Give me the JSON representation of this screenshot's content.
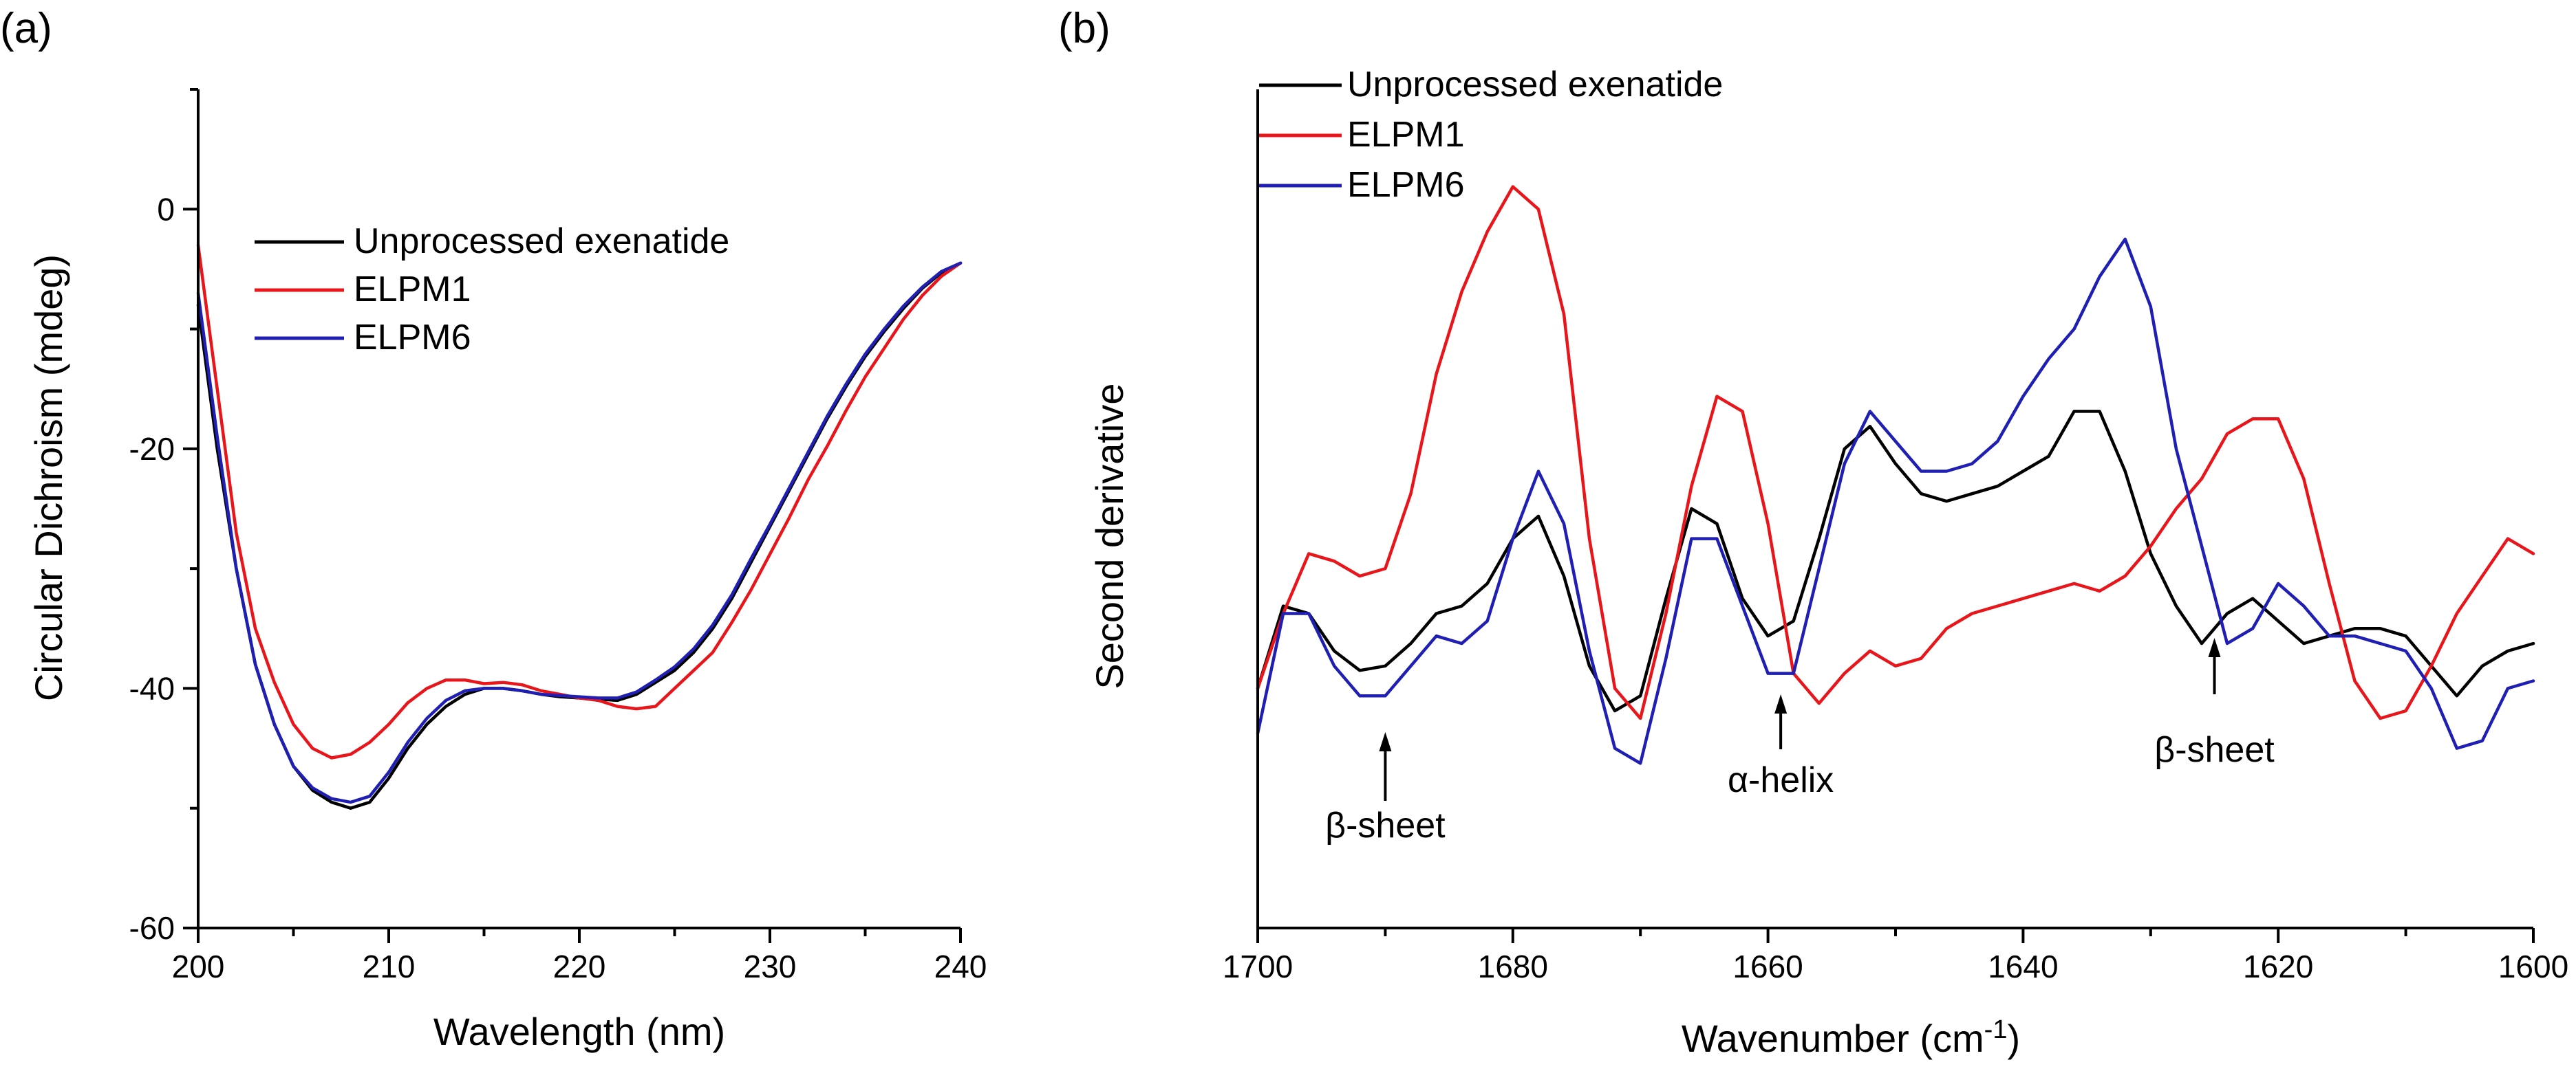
{
  "figure": {
    "panels": [
      "(a)",
      "(b)"
    ]
  },
  "colors": {
    "Unprocessed exenatide": "#000000",
    "ELPM1": "#e8161b",
    "ELPM6": "#1f1fb4"
  },
  "chart_data": [
    {
      "type": "line",
      "panel": "(a)",
      "title": "",
      "xlabel": "Wavelength (nm)",
      "ylabel": "Circular Dichroism (mdeg)",
      "xlim": [
        200,
        240
      ],
      "ylim": [
        -60,
        10
      ],
      "xticks": [
        200,
        210,
        220,
        230,
        240
      ],
      "xtick_labels": [
        "200",
        "210",
        "220",
        "230",
        "240"
      ],
      "yticks": [
        -60,
        -40,
        -20,
        0
      ],
      "ytick_labels": [
        "-60",
        "-40",
        "-20",
        "0"
      ],
      "grid": false,
      "legend": {
        "position": "top-left",
        "entries": [
          "Unprocessed exenatide",
          "ELPM1",
          "ELPM6"
        ]
      },
      "x": [
        200,
        201,
        202,
        203,
        204,
        205,
        206,
        207,
        208,
        209,
        210,
        211,
        212,
        213,
        214,
        215,
        216,
        217,
        218,
        219,
        220,
        221,
        222,
        223,
        224,
        225,
        226,
        227,
        228,
        229,
        230,
        231,
        232,
        233,
        234,
        235,
        236,
        237,
        238,
        239,
        240
      ],
      "series": [
        {
          "name": "Unprocessed exenatide",
          "values": [
            -8,
            -20,
            -30,
            -38,
            -43,
            -46.5,
            -48.5,
            -49.5,
            -50,
            -49.5,
            -47.5,
            -45,
            -43,
            -41.5,
            -40.5,
            -40,
            -40,
            -40.2,
            -40.5,
            -40.7,
            -40.8,
            -40.9,
            -41,
            -40.5,
            -39.5,
            -38.5,
            -37,
            -35,
            -32.5,
            -29.5,
            -26.5,
            -23.5,
            -20.5,
            -17.5,
            -14.8,
            -12.3,
            -10.2,
            -8.3,
            -6.6,
            -5.3,
            -4.5
          ]
        },
        {
          "name": "ELPM1",
          "values": [
            -3,
            -15,
            -27,
            -35,
            -39.5,
            -43,
            -45,
            -45.8,
            -45.5,
            -44.5,
            -43,
            -41.2,
            -40,
            -39.3,
            -39.3,
            -39.6,
            -39.5,
            -39.7,
            -40.2,
            -40.5,
            -40.8,
            -41,
            -41.5,
            -41.7,
            -41.5,
            -40,
            -38.5,
            -37,
            -34.5,
            -31.8,
            -28.8,
            -25.8,
            -22.6,
            -19.8,
            -16.8,
            -14,
            -11.6,
            -9.2,
            -7.2,
            -5.6,
            -4.5
          ]
        },
        {
          "name": "ELPM6",
          "values": [
            -7,
            -19,
            -30,
            -38,
            -43,
            -46.5,
            -48.3,
            -49.2,
            -49.5,
            -49,
            -47,
            -44.5,
            -42.5,
            -41,
            -40.2,
            -40,
            -40,
            -40.2,
            -40.5,
            -40.6,
            -40.7,
            -40.8,
            -40.8,
            -40.3,
            -39.3,
            -38.2,
            -36.7,
            -34.7,
            -32.2,
            -29.2,
            -26.3,
            -23.3,
            -20.3,
            -17.3,
            -14.6,
            -12.1,
            -10,
            -8.1,
            -6.5,
            -5.2,
            -4.5
          ]
        }
      ]
    },
    {
      "type": "line",
      "panel": "(b)",
      "title": "",
      "xlabel": "Wavenumber (cm",
      "xlabel_superscript": "-1",
      "xlabel_suffix": ")",
      "ylabel": "Second derivative",
      "xlim": [
        1700,
        1600
      ],
      "x_reversed": true,
      "xticks": [
        1700,
        1680,
        1660,
        1640,
        1620,
        1600
      ],
      "xtick_labels": [
        "1700",
        "1680",
        "1660",
        "1640",
        "1620",
        "1600"
      ],
      "yticks": [],
      "ylim": [
        -56,
        0
      ],
      "grid": false,
      "legend": {
        "position": "top-left",
        "entries": [
          "Unprocessed exenatide",
          "ELPM1",
          "ELPM6"
        ]
      },
      "annotations": [
        {
          "text": "β-sheet",
          "x": 1690
        },
        {
          "text": "α-helix",
          "x": 1659
        },
        {
          "text": "β-sheet",
          "x": 1625
        }
      ],
      "x": [
        1700,
        1698,
        1696,
        1694,
        1692,
        1690,
        1688,
        1686,
        1684,
        1682,
        1680,
        1678,
        1676,
        1674,
        1672,
        1670,
        1668,
        1666,
        1664,
        1662,
        1660,
        1658,
        1656,
        1654,
        1652,
        1650,
        1648,
        1646,
        1644,
        1642,
        1640,
        1638,
        1636,
        1634,
        1632,
        1630,
        1628,
        1626,
        1624,
        1622,
        1620,
        1618,
        1616,
        1614,
        1612,
        1610,
        1608,
        1606,
        1604,
        1602,
        1600
      ],
      "series": [
        {
          "name": "Unprocessed exenatide",
          "values": [
            -40,
            -34.5,
            -35,
            -37.5,
            -38.8,
            -38.5,
            -37,
            -35,
            -34.5,
            -33,
            -30,
            -28.5,
            -32.5,
            -38.5,
            -41.5,
            -40.5,
            -34,
            -28,
            -29,
            -34,
            -36.5,
            -35.5,
            -30,
            -24,
            -22.5,
            -25,
            -27,
            -27.5,
            -27,
            -26.5,
            -25.5,
            -24.5,
            -21.5,
            -21.5,
            -25.5,
            -31,
            -34.5,
            -37,
            -35,
            -34,
            -35.5,
            -37,
            -36.5,
            -36,
            -36,
            -36.5,
            -38.5,
            -40.5,
            -38.5,
            -37.5,
            -37
          ]
        },
        {
          "name": "ELPM1",
          "values": [
            -40,
            -35,
            -31,
            -31.5,
            -32.5,
            -32,
            -27,
            -19,
            -13.5,
            -9.5,
            -6.5,
            -8,
            -15,
            -30,
            -40,
            -42,
            -35,
            -26.5,
            -20.5,
            -21.5,
            -29,
            -39,
            -41,
            -39,
            -37.5,
            -38.5,
            -38,
            -36,
            -35,
            -34.5,
            -34,
            -33.5,
            -33,
            -33.5,
            -32.5,
            -30.5,
            -28,
            -26,
            -23,
            -22,
            -22,
            -26,
            -33,
            -39.5,
            -42,
            -41.5,
            -38.5,
            -35,
            -32.5,
            -30,
            -31
          ]
        },
        {
          "name": "ELPM6",
          "values": [
            -43,
            -35,
            -35,
            -38.5,
            -40.5,
            -40.5,
            -38.5,
            -36.5,
            -37,
            -35.5,
            -30,
            -25.5,
            -29,
            -37.5,
            -44,
            -45,
            -38,
            -30,
            -30,
            -34.5,
            -39,
            -39,
            -32,
            -25,
            -21.5,
            -23.5,
            -25.5,
            -25.5,
            -25,
            -23.5,
            -20.5,
            -18,
            -16,
            -12.5,
            -10,
            -14.5,
            -24,
            -30.5,
            -37,
            -36,
            -33,
            -34.5,
            -36.5,
            -36.5,
            -37,
            -37.5,
            -40,
            -44,
            -43.5,
            -40,
            -39.5
          ]
        }
      ]
    }
  ]
}
